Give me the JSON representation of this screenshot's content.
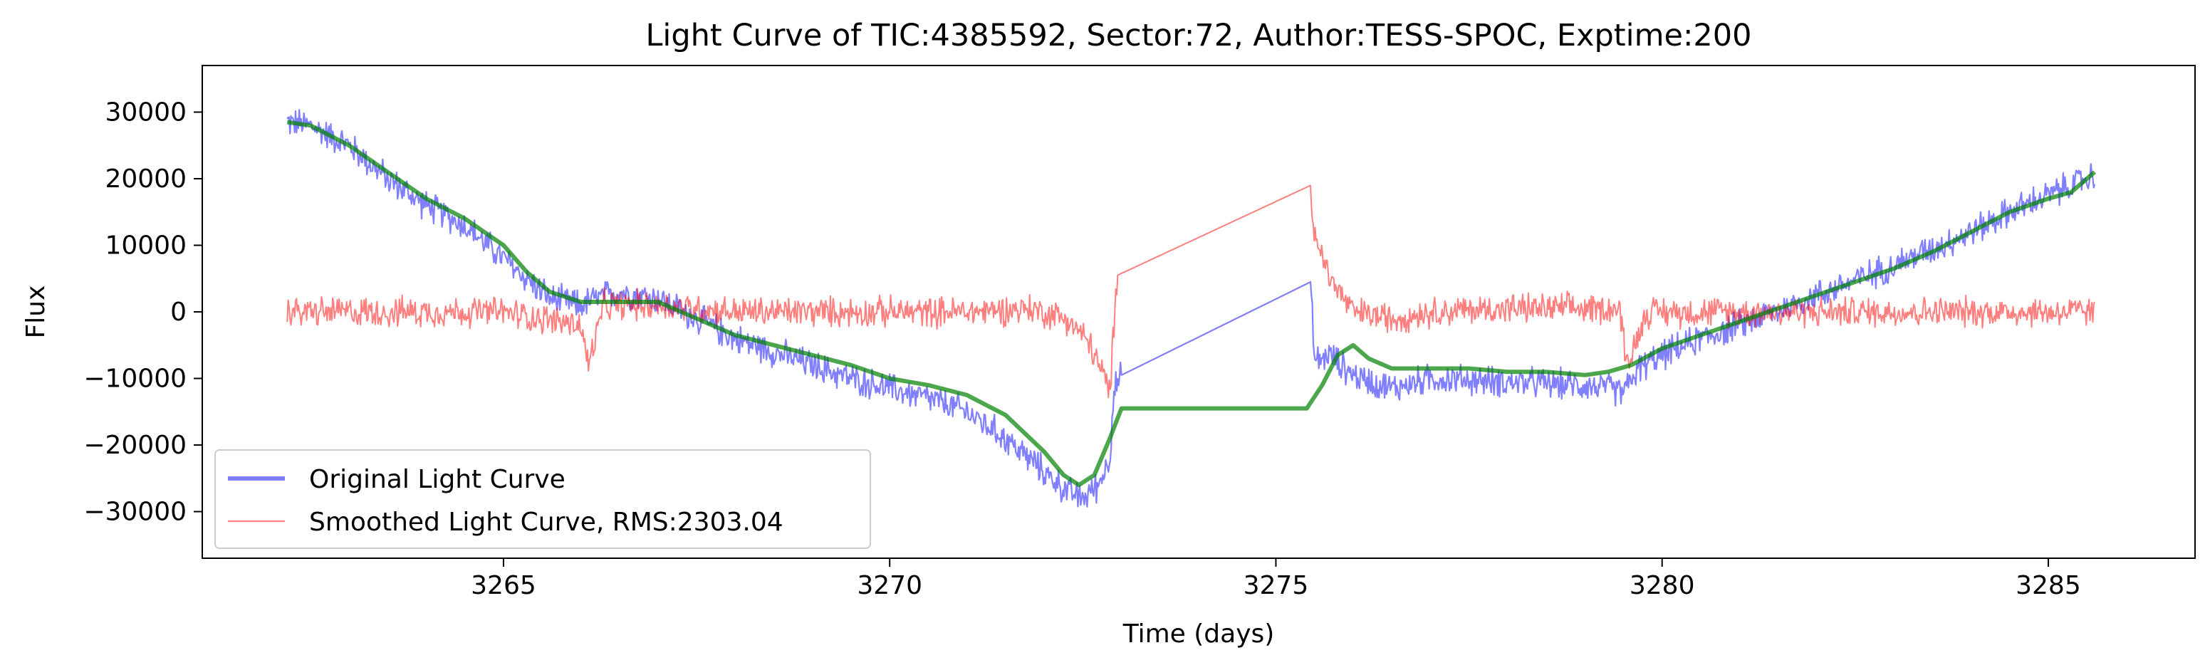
{
  "chart_data": {
    "type": "line",
    "title": "Light Curve of TIC:4385592, Sector:72, Author:TESS-SPOC, Exptime:200",
    "xlabel": "Time (days)",
    "ylabel": "Flux",
    "xlim": [
      3261.1,
      3286.9
    ],
    "ylim": [
      -37000,
      37000
    ],
    "xticks": [
      3265,
      3270,
      3275,
      3280,
      3285
    ],
    "yticks": [
      -30000,
      -20000,
      -10000,
      0,
      10000,
      20000,
      30000
    ],
    "xtick_labels": [
      "3265",
      "3270",
      "3275",
      "3280",
      "3285"
    ],
    "ytick_labels": [
      "−30000",
      "−20000",
      "−10000",
      "0",
      "10000",
      "20000",
      "30000"
    ],
    "grid": false,
    "legend_position": "lower-left",
    "series": [
      {
        "name": "Original Light Curve",
        "color": "#0000ff",
        "alpha": 0.5,
        "legend_linewidth": "thick",
        "noise_amplitude": 2300,
        "x": [
          3262.2,
          3262.5,
          3263.0,
          3263.5,
          3264.0,
          3264.5,
          3265.0,
          3265.3,
          3265.6,
          3266.0,
          3266.2,
          3266.5,
          3267.0,
          3267.5,
          3268.0,
          3268.5,
          3269.0,
          3269.5,
          3270.0,
          3270.5,
          3271.0,
          3271.5,
          3272.0,
          3272.3,
          3272.5,
          3272.7,
          3272.85,
          3272.9,
          3273.0,
          3275.45,
          3275.5,
          3275.7,
          3276.0,
          3276.5,
          3277.0,
          3278.0,
          3279.0,
          3279.3,
          3279.5,
          3279.7,
          3280.0,
          3280.5,
          3281.0,
          3282.0,
          3283.0,
          3284.0,
          3284.5,
          3285.0,
          3285.3,
          3285.6
        ],
        "values": [
          28500,
          28000,
          25000,
          20000,
          16000,
          13000,
          8000,
          5000,
          2000,
          1000,
          2000,
          3000,
          2000,
          -1000,
          -4000,
          -6000,
          -8000,
          -10000,
          -11500,
          -13000,
          -15000,
          -19000,
          -24000,
          -27000,
          -28000,
          -26000,
          -22000,
          -12000,
          -9500,
          4500,
          -7500,
          -6500,
          -9500,
          -11500,
          -10000,
          -10500,
          -11000,
          -11500,
          -12000,
          -8500,
          -6500,
          -4000,
          -2000,
          2500,
          7000,
          12000,
          15000,
          17500,
          19000,
          20500
        ]
      },
      {
        "name": "Smoothed Light Curve, RMS:2303.04",
        "color": "#ff0000",
        "alpha": 0.5,
        "legend_linewidth": "thin",
        "noise_amplitude": 2300,
        "x": [
          3262.2,
          3264.0,
          3265.0,
          3266.0,
          3266.1,
          3266.3,
          3267.0,
          3268.0,
          3269.0,
          3270.0,
          3271.0,
          3271.8,
          3272.3,
          3272.6,
          3272.85,
          3272.95,
          3275.45,
          3275.5,
          3275.7,
          3276.0,
          3276.5,
          3277.0,
          3278.0,
          3279.0,
          3279.45,
          3279.55,
          3279.8,
          3280.0,
          3281.0,
          3282.0,
          3283.0,
          3284.0,
          3285.0,
          3285.6
        ],
        "values": [
          0,
          0,
          0,
          -2000,
          -8000,
          1000,
          1000,
          0,
          0,
          0,
          0,
          500,
          -1000,
          -5000,
          -12000,
          5500,
          19000,
          12000,
          5000,
          0,
          -1000,
          0,
          500,
          500,
          500,
          -8000,
          0,
          0,
          0,
          0,
          0,
          0,
          0,
          0
        ]
      },
      {
        "name": "",
        "color": "#008000",
        "alpha": 0.7,
        "noise_amplitude": 0,
        "x": [
          3262.2,
          3262.5,
          3263.0,
          3263.5,
          3264.0,
          3264.5,
          3265.0,
          3265.3,
          3265.6,
          3266.0,
          3266.5,
          3267.0,
          3267.3,
          3267.6,
          3268.0,
          3268.5,
          3269.0,
          3269.5,
          3270.0,
          3270.5,
          3271.0,
          3271.5,
          3272.0,
          3272.25,
          3272.45,
          3272.65,
          3272.85,
          3273.0,
          3275.4,
          3275.6,
          3275.8,
          3276.0,
          3276.2,
          3276.5,
          3277.0,
          3277.5,
          3278.0,
          3278.5,
          3279.0,
          3279.3,
          3279.6,
          3280.0,
          3280.5,
          3281.0,
          3281.5,
          3282.0,
          3282.5,
          3283.0,
          3283.5,
          3284.0,
          3284.5,
          3285.0,
          3285.3,
          3285.6
        ],
        "values": [
          28500,
          28000,
          25000,
          21000,
          17000,
          14000,
          10000,
          6000,
          3000,
          1500,
          1500,
          1500,
          0,
          -1500,
          -3500,
          -5000,
          -6500,
          -8000,
          -10000,
          -11000,
          -12500,
          -15500,
          -21000,
          -24500,
          -26000,
          -24500,
          -19000,
          -14500,
          -14500,
          -11000,
          -6500,
          -5000,
          -7000,
          -8500,
          -8500,
          -8500,
          -9000,
          -9000,
          -9500,
          -9000,
          -8000,
          -5500,
          -3500,
          -1500,
          500,
          2500,
          4500,
          6500,
          9000,
          12000,
          15000,
          17000,
          18000,
          21000
        ]
      }
    ]
  }
}
